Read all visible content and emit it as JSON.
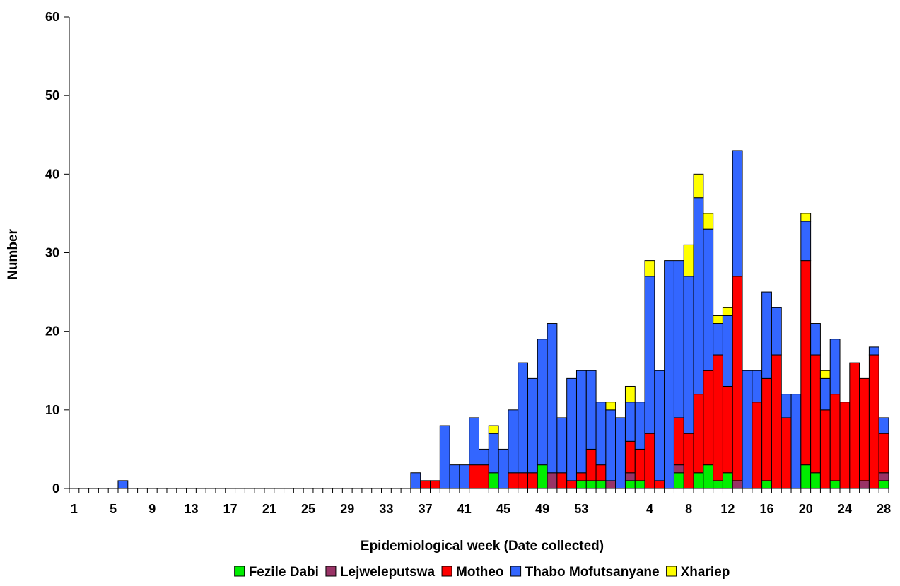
{
  "chart_data": {
    "type": "bar",
    "stacked": true,
    "xlabel": "Epidemiological week (Date collected)",
    "ylabel": "Number",
    "ylim": [
      0,
      60
    ],
    "yticks": [
      0,
      10,
      20,
      30,
      40,
      50,
      60
    ],
    "grid": false,
    "legend_position": "bottom",
    "categories": [
      1,
      2,
      3,
      4,
      5,
      6,
      7,
      8,
      9,
      10,
      11,
      12,
      13,
      14,
      15,
      16,
      17,
      18,
      19,
      20,
      21,
      22,
      23,
      24,
      25,
      26,
      27,
      28,
      29,
      30,
      31,
      32,
      33,
      34,
      35,
      36,
      37,
      38,
      39,
      40,
      41,
      42,
      43,
      44,
      45,
      46,
      47,
      48,
      49,
      50,
      51,
      52,
      53,
      54,
      55,
      56,
      1,
      2,
      3,
      4,
      5,
      6,
      7,
      8,
      9,
      10,
      11,
      12,
      13,
      14,
      15,
      16,
      17,
      18,
      19,
      20,
      21,
      22,
      23,
      24,
      25,
      26,
      27,
      28
    ],
    "x_tick_labels": [
      "1",
      "5",
      "9",
      "13",
      "17",
      "21",
      "25",
      "29",
      "33",
      "37",
      "41",
      "45",
      "49",
      "53",
      "4",
      "8",
      "12",
      "16",
      "20",
      "24",
      "28"
    ],
    "x_tick_label_indices": [
      0,
      4,
      8,
      12,
      16,
      20,
      24,
      28,
      32,
      36,
      40,
      44,
      48,
      52,
      59,
      63,
      67,
      71,
      75,
      79,
      83
    ],
    "x_tick_labels_skipped_row": [
      "3",
      "7",
      "11",
      "15",
      "19",
      "23",
      "27",
      "31",
      "35",
      "39",
      "43",
      "47",
      "51",
      "55",
      "2",
      "6",
      "10",
      "14",
      "18",
      "22",
      "26"
    ],
    "x_tick_labels_skipped_row_indices": [
      2,
      6,
      10,
      14,
      18,
      22,
      26,
      30,
      34,
      38,
      42,
      46,
      50,
      54,
      57,
      61,
      65,
      69,
      73,
      77,
      81
    ],
    "series": [
      {
        "name": "Fezile Dabi",
        "color": "#00ee00",
        "values": [
          0,
          0,
          0,
          0,
          0,
          0,
          0,
          0,
          0,
          0,
          0,
          0,
          0,
          0,
          0,
          0,
          0,
          0,
          0,
          0,
          0,
          0,
          0,
          0,
          0,
          0,
          0,
          0,
          0,
          0,
          0,
          0,
          0,
          0,
          0,
          0,
          0,
          0,
          0,
          0,
          0,
          0,
          0,
          2,
          0,
          0,
          0,
          0,
          3,
          0,
          0,
          0,
          1,
          1,
          1,
          0,
          0,
          1,
          1,
          0,
          0,
          0,
          2,
          0,
          2,
          3,
          1,
          2,
          0,
          0,
          0,
          1,
          0,
          0,
          0,
          3,
          2,
          0,
          1,
          0,
          0,
          0,
          0,
          1
        ]
      },
      {
        "name": "Lejweleputswa",
        "color": "#993366",
        "values": [
          0,
          0,
          0,
          0,
          0,
          0,
          0,
          0,
          0,
          0,
          0,
          0,
          0,
          0,
          0,
          0,
          0,
          0,
          0,
          0,
          0,
          0,
          0,
          0,
          0,
          0,
          0,
          0,
          0,
          0,
          0,
          0,
          0,
          0,
          0,
          0,
          0,
          0,
          0,
          0,
          0,
          0,
          0,
          0,
          0,
          0,
          0,
          0,
          0,
          2,
          0,
          0,
          0,
          0,
          0,
          1,
          0,
          1,
          0,
          0,
          0,
          0,
          1,
          0,
          0,
          0,
          0,
          0,
          1,
          0,
          0,
          0,
          0,
          0,
          0,
          0,
          0,
          0,
          0,
          0,
          0,
          1,
          0,
          1
        ]
      },
      {
        "name": "Motheo",
        "color": "#ff0000",
        "values": [
          0,
          0,
          0,
          0,
          0,
          0,
          0,
          0,
          0,
          0,
          0,
          0,
          0,
          0,
          0,
          0,
          0,
          0,
          0,
          0,
          0,
          0,
          0,
          0,
          0,
          0,
          0,
          0,
          0,
          0,
          0,
          0,
          0,
          0,
          0,
          0,
          1,
          1,
          0,
          0,
          0,
          3,
          3,
          0,
          0,
          2,
          2,
          2,
          0,
          0,
          2,
          1,
          1,
          4,
          2,
          0,
          0,
          4,
          4,
          7,
          1,
          0,
          6,
          7,
          10,
          12,
          16,
          11,
          26,
          0,
          11,
          13,
          17,
          9,
          0,
          26,
          15,
          10,
          11,
          11,
          16,
          13,
          17,
          5
        ]
      },
      {
        "name": "Thabo Mofutsanyane",
        "color": "#3366ff",
        "values": [
          0,
          0,
          0,
          0,
          0,
          1,
          0,
          0,
          0,
          0,
          0,
          0,
          0,
          0,
          0,
          0,
          0,
          0,
          0,
          0,
          0,
          0,
          0,
          0,
          0,
          0,
          0,
          0,
          0,
          0,
          0,
          0,
          0,
          0,
          0,
          2,
          0,
          0,
          8,
          3,
          3,
          6,
          2,
          5,
          5,
          8,
          14,
          12,
          16,
          19,
          7,
          13,
          13,
          10,
          8,
          9,
          9,
          5,
          6,
          20,
          14,
          29,
          20,
          20,
          25,
          18,
          4,
          9,
          16,
          15,
          4,
          11,
          6,
          3,
          12,
          5,
          4,
          4,
          7,
          0,
          0,
          0,
          1,
          2
        ]
      },
      {
        "name": "Xhariep",
        "color": "#ffff00",
        "values": [
          0,
          0,
          0,
          0,
          0,
          0,
          0,
          0,
          0,
          0,
          0,
          0,
          0,
          0,
          0,
          0,
          0,
          0,
          0,
          0,
          0,
          0,
          0,
          0,
          0,
          0,
          0,
          0,
          0,
          0,
          0,
          0,
          0,
          0,
          0,
          0,
          0,
          0,
          0,
          0,
          0,
          0,
          0,
          1,
          0,
          0,
          0,
          0,
          0,
          0,
          0,
          0,
          0,
          0,
          0,
          1,
          0,
          2,
          0,
          2,
          0,
          0,
          0,
          4,
          3,
          2,
          1,
          1,
          0,
          0,
          0,
          0,
          0,
          0,
          0,
          1,
          0,
          1,
          0,
          0,
          0,
          0,
          0,
          0
        ]
      }
    ]
  }
}
